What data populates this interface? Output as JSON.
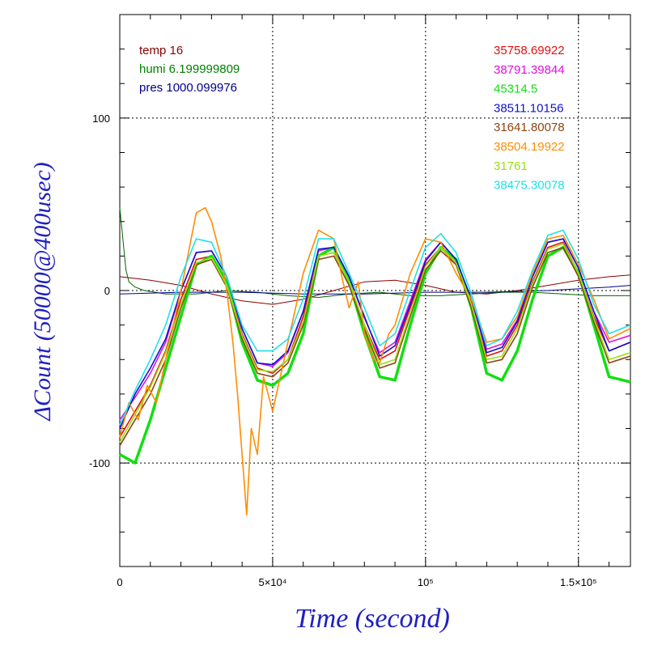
{
  "chart_data": {
    "type": "line",
    "xlabel": "Time (second)",
    "ylabel": "ΔCount (50000@400usec)",
    "xlim": [
      0,
      167000
    ],
    "ylim": [
      -160,
      160
    ],
    "x_ticks": [
      {
        "value": 0,
        "label": "0"
      },
      {
        "value": 50000,
        "label": "5×10⁴"
      },
      {
        "value": 100000,
        "label": "10⁵"
      },
      {
        "value": 150000,
        "label": "1.5×10⁵"
      }
    ],
    "y_ticks": [
      {
        "value": -100,
        "label": "-100"
      },
      {
        "value": 0,
        "label": "0"
      },
      {
        "value": 100,
        "label": "100"
      }
    ],
    "grid": "dotted at major ticks",
    "env_legend": [
      {
        "text": "temp 16",
        "color": "#8b0000"
      },
      {
        "text": "humi 6.199999809",
        "color": "#008000"
      },
      {
        "text": "pres 1000.099976",
        "color": "#00008b"
      }
    ],
    "series": [
      {
        "name": "35758.69922",
        "color": "#e01010",
        "x": [
          0,
          5000,
          10000,
          15000,
          20000,
          25000,
          30000,
          35000,
          40000,
          45000,
          50000,
          55000,
          60000,
          65000,
          70000,
          75000,
          80000,
          85000,
          90000,
          95000,
          100000,
          105000,
          110000,
          115000,
          120000,
          125000,
          130000,
          135000,
          140000,
          145000,
          150000,
          155000,
          160000,
          167000
        ],
        "y": [
          -85,
          -70,
          -55,
          -35,
          -5,
          18,
          20,
          5,
          -25,
          -45,
          -48,
          -40,
          -15,
          20,
          22,
          5,
          -20,
          -40,
          -35,
          -10,
          15,
          25,
          15,
          -10,
          -38,
          -35,
          -20,
          5,
          25,
          28,
          10,
          -15,
          -35,
          -30
        ]
      },
      {
        "name": "38791.39844",
        "color": "#e010e0",
        "x": [
          0,
          5000,
          10000,
          15000,
          20000,
          25000,
          30000,
          35000,
          40000,
          45000,
          50000,
          55000,
          60000,
          65000,
          70000,
          75000,
          80000,
          85000,
          90000,
          95000,
          100000,
          105000,
          110000,
          115000,
          120000,
          125000,
          130000,
          135000,
          140000,
          145000,
          150000,
          155000,
          160000,
          167000
        ],
        "y": [
          -75,
          -62,
          -48,
          -30,
          0,
          22,
          23,
          8,
          -22,
          -42,
          -44,
          -36,
          -12,
          23,
          25,
          8,
          -16,
          -36,
          -30,
          -6,
          18,
          28,
          18,
          -6,
          -34,
          -31,
          -17,
          8,
          28,
          30,
          13,
          -12,
          -30,
          -26
        ]
      },
      {
        "name": "45314.5",
        "color": "#10e010",
        "x": [
          0,
          5000,
          10000,
          15000,
          20000,
          25000,
          30000,
          35000,
          40000,
          45000,
          50000,
          55000,
          60000,
          65000,
          70000,
          75000,
          80000,
          85000,
          90000,
          95000,
          100000,
          105000,
          110000,
          115000,
          120000,
          125000,
          130000,
          135000,
          140000,
          145000,
          150000,
          155000,
          160000,
          167000
        ],
        "y": [
          -95,
          -100,
          -75,
          -45,
          -15,
          15,
          20,
          5,
          -30,
          -52,
          -55,
          -48,
          -25,
          20,
          25,
          5,
          -25,
          -50,
          -52,
          -20,
          10,
          25,
          18,
          -10,
          -48,
          -52,
          -35,
          -5,
          20,
          25,
          10,
          -20,
          -50,
          -53
        ]
      },
      {
        "name": "38511.10156",
        "color": "#1010d0",
        "x": [
          0,
          5000,
          10000,
          15000,
          20000,
          25000,
          30000,
          35000,
          40000,
          45000,
          50000,
          55000,
          60000,
          65000,
          70000,
          75000,
          80000,
          85000,
          90000,
          95000,
          100000,
          105000,
          110000,
          115000,
          120000,
          125000,
          130000,
          135000,
          140000,
          145000,
          150000,
          155000,
          160000,
          167000
        ],
        "y": [
          -80,
          -60,
          -45,
          -28,
          0,
          22,
          23,
          8,
          -22,
          -42,
          -43,
          -35,
          -12,
          24,
          25,
          8,
          -15,
          -38,
          -32,
          -8,
          17,
          28,
          18,
          -5,
          -36,
          -33,
          -18,
          8,
          28,
          30,
          13,
          -12,
          -35,
          -30
        ]
      },
      {
        "name": "31641.80078",
        "color": "#8b4513",
        "x": [
          0,
          5000,
          10000,
          15000,
          20000,
          25000,
          30000,
          35000,
          40000,
          45000,
          50000,
          55000,
          60000,
          65000,
          70000,
          75000,
          80000,
          85000,
          90000,
          95000,
          100000,
          105000,
          110000,
          115000,
          120000,
          125000,
          130000,
          135000,
          140000,
          145000,
          150000,
          155000,
          160000,
          167000
        ],
        "y": [
          -90,
          -75,
          -60,
          -40,
          -10,
          15,
          18,
          2,
          -28,
          -48,
          -50,
          -42,
          -20,
          18,
          20,
          3,
          -22,
          -45,
          -42,
          -15,
          12,
          23,
          15,
          -10,
          -42,
          -40,
          -25,
          2,
          22,
          25,
          8,
          -18,
          -42,
          -38
        ]
      },
      {
        "name": "38504.19922",
        "color": "#ff8c00",
        "x": [
          0,
          3000,
          6000,
          9000,
          12000,
          15000,
          20000,
          25000,
          28000,
          30000,
          33000,
          35000,
          37000,
          38500,
          40000,
          41500,
          43000,
          45000,
          47000,
          50000,
          55000,
          60000,
          65000,
          70000,
          73000,
          75000,
          78000,
          80000,
          83000,
          85000,
          88000,
          90000,
          95000,
          100000,
          105000,
          110000,
          115000,
          120000,
          125000,
          130000,
          135000,
          140000,
          145000,
          150000,
          155000,
          160000,
          167000
        ],
        "y": [
          -85,
          -65,
          -75,
          -55,
          -65,
          -40,
          0,
          45,
          48,
          40,
          20,
          0,
          -30,
          -60,
          -95,
          -130,
          -80,
          -95,
          -50,
          -70,
          -30,
          10,
          35,
          30,
          5,
          -10,
          5,
          -25,
          -40,
          -42,
          -25,
          -20,
          10,
          30,
          28,
          10,
          -5,
          -30,
          -28,
          -15,
          10,
          30,
          32,
          15,
          -5,
          -28,
          -22
        ]
      },
      {
        "name": "31761",
        "color": "#99e010",
        "x": [
          0,
          5000,
          10000,
          15000,
          20000,
          25000,
          30000,
          35000,
          40000,
          45000,
          50000,
          55000,
          60000,
          65000,
          70000,
          75000,
          80000,
          85000,
          90000,
          95000,
          100000,
          105000,
          110000,
          115000,
          120000,
          125000,
          130000,
          135000,
          140000,
          145000,
          150000,
          155000,
          160000,
          167000
        ],
        "y": [
          -88,
          -72,
          -56,
          -36,
          -8,
          16,
          19,
          3,
          -26,
          -46,
          -47,
          -40,
          -18,
          20,
          22,
          5,
          -20,
          -43,
          -40,
          -13,
          14,
          25,
          16,
          -8,
          -40,
          -38,
          -22,
          4,
          24,
          27,
          10,
          -16,
          -40,
          -36
        ]
      },
      {
        "name": "38475.30078",
        "color": "#20e0e8",
        "x": [
          0,
          5000,
          10000,
          15000,
          20000,
          25000,
          30000,
          35000,
          40000,
          45000,
          50000,
          55000,
          60000,
          65000,
          70000,
          75000,
          80000,
          85000,
          90000,
          95000,
          100000,
          105000,
          110000,
          115000,
          120000,
          125000,
          130000,
          135000,
          140000,
          145000,
          150000,
          155000,
          160000,
          167000
        ],
        "y": [
          -78,
          -58,
          -40,
          -20,
          8,
          30,
          28,
          8,
          -20,
          -35,
          -35,
          -28,
          -5,
          30,
          30,
          10,
          -10,
          -32,
          -25,
          0,
          25,
          33,
          22,
          -2,
          -32,
          -28,
          -12,
          12,
          32,
          35,
          18,
          -8,
          -25,
          -20
        ]
      }
    ],
    "env_series": [
      {
        "name": "temp",
        "color": "#8b0000",
        "x": [
          0,
          10000,
          20000,
          30000,
          40000,
          50000,
          60000,
          70000,
          80000,
          90000,
          100000,
          110000,
          120000,
          130000,
          140000,
          150000,
          160000,
          167000
        ],
        "y": [
          8,
          6,
          3,
          -2,
          -6,
          -8,
          -5,
          0,
          5,
          6,
          3,
          -1,
          -2,
          0,
          3,
          6,
          8,
          9
        ]
      },
      {
        "name": "humi",
        "color": "#006400",
        "x": [
          0,
          1000,
          2000,
          3000,
          5000,
          8000,
          15000,
          25000,
          35000,
          45000,
          55000,
          65000,
          75000,
          85000,
          95000,
          105000,
          115000,
          125000,
          135000,
          145000,
          155000,
          167000
        ],
        "y": [
          48,
          30,
          12,
          5,
          2,
          0,
          -2,
          -2,
          0,
          -1,
          -3,
          -4,
          -2,
          -1,
          -3,
          -3,
          -2,
          -1,
          -1,
          -2,
          -3,
          -3
        ]
      },
      {
        "name": "pres",
        "color": "#00008b",
        "x": [
          0,
          20000,
          40000,
          60000,
          80000,
          100000,
          120000,
          140000,
          160000,
          167000
        ],
        "y": [
          -2,
          -1,
          -1,
          -2,
          -2,
          -1,
          -1,
          0,
          2,
          3
        ]
      }
    ]
  }
}
